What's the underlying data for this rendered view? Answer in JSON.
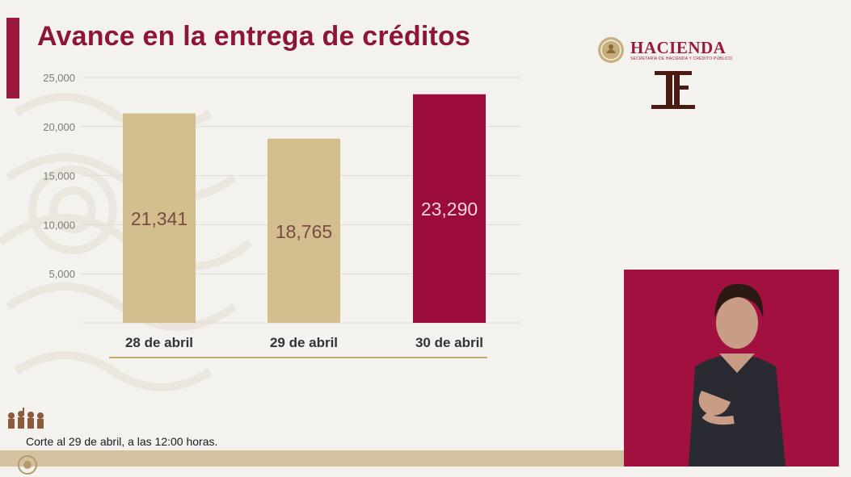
{
  "slide": {
    "title": "Avance en la entrega de créditos",
    "footnote": "Corte al 29 de abril, a las 12:00 horas."
  },
  "logos": {
    "hacienda_name": "HACIENDA",
    "hacienda_sub": "SECRETARÍA DE HACIENDA Y CRÉDITO PÚBLICO",
    "seal_icon": "mexico-seal-icon",
    "tf_icon": "tribunal-tf-icon",
    "crowd_icon": "historic-figures-icon"
  },
  "colors": {
    "title": "#8c1538",
    "accent": "#9a1a3e",
    "bar_default": "#d3bf8e",
    "bar_highlight": "#9b0c3b",
    "label_on_light": "#7a4a45",
    "label_on_dark": "#f0d6dc",
    "underline": "#c3a86e",
    "grid": "#dedbd6"
  },
  "chart_data": {
    "type": "bar",
    "categories": [
      "28 de abril",
      "29 de abril",
      "30 de abril"
    ],
    "values": [
      21341,
      18765,
      23290
    ],
    "data_labels": [
      "21,341",
      "18,765",
      "23,290"
    ],
    "highlight_index": 2,
    "yticks": [
      0,
      5000,
      10000,
      15000,
      20000,
      25000
    ],
    "ytick_labels": [
      "",
      "5,000",
      "10,000",
      "15,000",
      "20,000",
      "25,000"
    ],
    "ylim": [
      0,
      25000
    ],
    "title": "Avance en la entrega de créditos",
    "xlabel": "",
    "ylabel": "",
    "grid": true
  }
}
